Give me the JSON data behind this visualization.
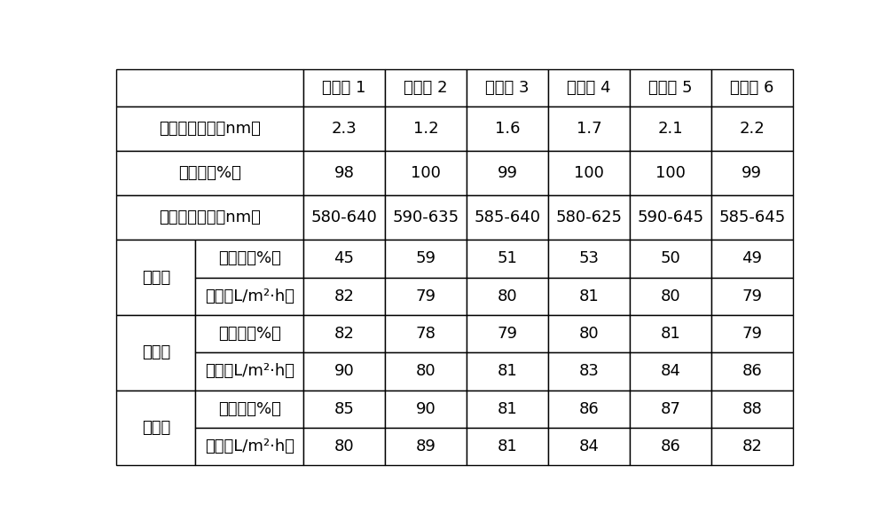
{
  "col_headers": [
    "实施例 1",
    "实施例 2",
    "实施例 3",
    "实施例 4",
    "实施例 5",
    "实施例 6"
  ],
  "simple_rows": [
    {
      "label": "平均孔径大小（nm）",
      "values": [
        "2.3",
        "1.2",
        "1.6",
        "1.7",
        "2.1",
        "2.2"
      ]
    },
    {
      "label": "抗菌率（%）",
      "values": [
        "98",
        "100",
        "99",
        "100",
        "100",
        "99"
      ]
    },
    {
      "label": "荧光发射波长（nm）",
      "values": [
        "580-640",
        "590-635",
        "585-640",
        "580-625",
        "590-645",
        "585-645"
      ]
    }
  ],
  "grouped_rows": [
    {
      "group": "氯化钓",
      "sub1_label": "脱除率（%）",
      "sub1_values": [
        "45",
        "59",
        "51",
        "53",
        "50",
        "49"
      ],
      "sub2_label": "通量（L/m²·h）",
      "sub2_values": [
        "82",
        "79",
        "80",
        "81",
        "80",
        "79"
      ]
    },
    {
      "group": "氯化镁",
      "sub1_label": "脱除率（%）",
      "sub1_values": [
        "82",
        "78",
        "79",
        "80",
        "81",
        "79"
      ],
      "sub2_label": "通量（L/m²·h）",
      "sub2_values": [
        "90",
        "80",
        "81",
        "83",
        "84",
        "86"
      ]
    },
    {
      "group": "硫酸钓",
      "sub1_label": "脱除率（%）",
      "sub1_values": [
        "85",
        "90",
        "81",
        "86",
        "87",
        "88"
      ],
      "sub2_label": "通量（L/m²·h）",
      "sub2_values": [
        "80",
        "89",
        "81",
        "84",
        "86",
        "82"
      ]
    }
  ],
  "border_color": "#000000",
  "bg_color": "#ffffff",
  "font_size": 13,
  "header_font_size": 13,
  "sub2_label_1": "通量（L/m",
  "sub2_label_2": "2",
  "sub2_label_3": "·h）"
}
